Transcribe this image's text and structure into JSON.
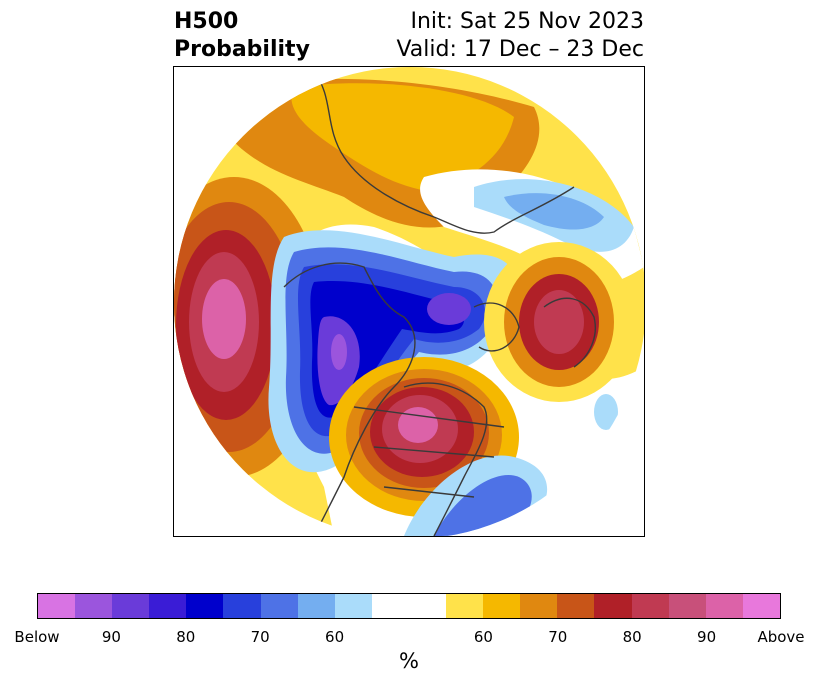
{
  "header": {
    "title_line1": "H500",
    "title_line2": "Probability",
    "init_line": "Init: Sat 25 Nov 2023",
    "valid_line": "Valid: 17 Dec – 23 Dec"
  },
  "map": {
    "projection": "polar-stereographic-north",
    "features": [
      "coastlines",
      "country-borders",
      "us-state-borders"
    ],
    "anomaly_regions": [
      {
        "name": "north-pacific-above",
        "category": "above",
        "peak_probability": 90
      },
      {
        "name": "eastern-us-great-lakes-above",
        "category": "above",
        "peak_probability": 90
      },
      {
        "name": "north-atlantic-europe-above",
        "category": "above",
        "peak_probability": 85
      },
      {
        "name": "siberia-above",
        "category": "above",
        "peak_probability": 70
      },
      {
        "name": "western-canada-below",
        "category": "below",
        "peak_probability": 90
      },
      {
        "name": "canadian-arctic-below",
        "category": "below",
        "peak_probability": 85
      },
      {
        "name": "western-atlantic-below",
        "category": "below",
        "peak_probability": 75
      }
    ]
  },
  "colorbar": {
    "unit": "%",
    "colors": [
      "#d873e3",
      "#9b55dd",
      "#6a3bd9",
      "#3a1cd6",
      "#0000cc",
      "#2840dc",
      "#4e72e6",
      "#74aef0",
      "#aadcfa",
      "#ffffff",
      "#ffffff",
      "#ffe24a",
      "#f5b800",
      "#e08810",
      "#c85518",
      "#b02028",
      "#c03a52",
      "#c8507a",
      "#dc62a8",
      "#e878dc"
    ],
    "ticks": [
      {
        "label": "Below",
        "index": 0
      },
      {
        "label": "90",
        "index": 2
      },
      {
        "label": "80",
        "index": 4
      },
      {
        "label": "70",
        "index": 6
      },
      {
        "label": "60",
        "index": 8
      },
      {
        "label": "60",
        "index": 12
      },
      {
        "label": "70",
        "index": 14
      },
      {
        "label": "80",
        "index": 16
      },
      {
        "label": "90",
        "index": 18
      },
      {
        "label": "Above",
        "index": 20
      }
    ]
  }
}
